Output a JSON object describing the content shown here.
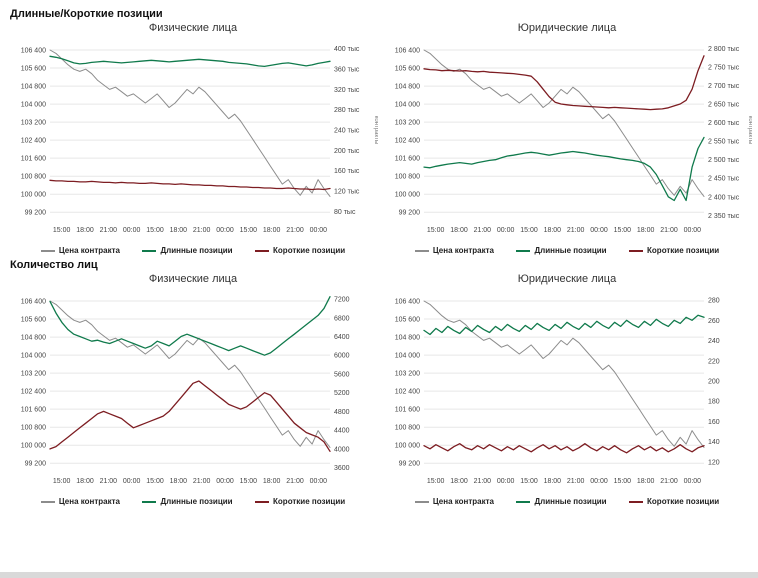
{
  "sections": [
    {
      "title": "Длинные/Короткие позиции"
    },
    {
      "title": "Количество лиц"
    }
  ],
  "legend": {
    "items": [
      "Цена контракта",
      "Длинные позиции",
      "Короткие позиции"
    ]
  },
  "colors": {
    "price": "#8c8c8c",
    "long": "#107a4c",
    "short": "#7d1d22",
    "grid": "#e7e7e7",
    "tick_text": "#444444"
  },
  "chart_data": [
    {
      "type": "line",
      "section": "Длинные/Короткие позиции",
      "title": "Физические лица",
      "x_ticks": [
        "15:00",
        "18:00",
        "21:00",
        "00:00",
        "15:00",
        "18:00",
        "21:00",
        "00:00",
        "15:00",
        "18:00",
        "21:00",
        "00:00"
      ],
      "left_axis": {
        "min": 98900,
        "max": 106800,
        "tick_values": [
          106400,
          105600,
          104800,
          104000,
          103200,
          102400,
          101600,
          100800,
          100000,
          99200
        ],
        "tick_labels": [
          "106 400",
          "105 600",
          "104 800",
          "104 000",
          "103 200",
          "102 400",
          "101 600",
          "100 800",
          "100 000",
          "99 200"
        ]
      },
      "right_axis": {
        "min": 65,
        "max": 415,
        "label": "контракты",
        "tick_values": [
          400,
          360,
          320,
          280,
          240,
          200,
          160,
          120,
          80
        ],
        "tick_labels": [
          "400 тыс",
          "360 тыс",
          "320 тыс",
          "280 тыс",
          "240 тыс",
          "200 тыс",
          "160 тыс",
          "120 тыс",
          "80 тыс"
        ]
      },
      "series": [
        {
          "name": "Цена контракта",
          "axis": "left",
          "color_key": "price",
          "values": [
            106400,
            106250,
            106000,
            105750,
            105550,
            105450,
            105550,
            105350,
            105050,
            104850,
            104650,
            104750,
            104550,
            104350,
            104450,
            104250,
            104050,
            104250,
            104450,
            104150,
            103850,
            104050,
            104350,
            104650,
            104450,
            104750,
            104550,
            104250,
            103950,
            103650,
            103350,
            103550,
            103250,
            102850,
            102450,
            102050,
            101650,
            101250,
            100850,
            100450,
            100650,
            100250,
            99950,
            100350,
            100050,
            100650,
            100250,
            99900
          ]
        },
        {
          "name": "Длинные позиции",
          "axis": "right",
          "color_key": "long",
          "values": [
            385,
            383,
            380,
            376,
            372,
            370,
            371,
            373,
            374,
            375,
            374,
            373,
            372,
            373,
            374,
            375,
            376,
            377,
            376,
            375,
            374,
            375,
            376,
            377,
            378,
            379,
            378,
            377,
            376,
            375,
            373,
            372,
            371,
            370,
            368,
            366,
            365,
            367,
            369,
            371,
            372,
            370,
            368,
            366,
            368,
            371,
            373,
            375
          ]
        },
        {
          "name": "Короткие позиции",
          "axis": "right",
          "color_key": "short",
          "values": [
            141,
            140,
            140,
            139,
            139,
            138,
            138,
            139,
            138,
            137,
            137,
            136,
            137,
            136,
            136,
            135,
            135,
            136,
            135,
            134,
            134,
            133,
            134,
            133,
            132,
            132,
            131,
            131,
            130,
            130,
            129,
            129,
            128,
            128,
            127,
            127,
            126,
            126,
            125,
            125,
            126,
            125,
            124,
            124,
            123,
            124,
            123,
            125
          ]
        }
      ]
    },
    {
      "type": "line",
      "section": "Длинные/Короткие позиции",
      "title": "Юридические лица",
      "x_ticks": [
        "15:00",
        "18:00",
        "21:00",
        "00:00",
        "15:00",
        "18:00",
        "21:00",
        "00:00",
        "15:00",
        "18:00",
        "21:00",
        "00:00"
      ],
      "left_axis": {
        "min": 98900,
        "max": 106800,
        "tick_values": [
          106400,
          105600,
          104800,
          104000,
          103200,
          102400,
          101600,
          100800,
          100000,
          99200
        ],
        "tick_labels": [
          "106 400",
          "105 600",
          "104 800",
          "104 000",
          "103 200",
          "102 400",
          "101 600",
          "100 800",
          "100 000",
          "99 200"
        ]
      },
      "right_axis": {
        "min": 2340,
        "max": 2820,
        "label": "контракты",
        "tick_values": [
          2800,
          2750,
          2700,
          2650,
          2600,
          2550,
          2500,
          2450,
          2400,
          2350
        ],
        "tick_labels": [
          "2 800 тыс",
          "2 750 тыс",
          "2 700 тыс",
          "2 650 тыс",
          "2 600 тыс",
          "2 550 тыс",
          "2 500 тыс",
          "2 450 тыс",
          "2 400 тыс",
          "2 350 тыс"
        ]
      },
      "series": [
        {
          "name": "Цена контракта",
          "axis": "left",
          "color_key": "price",
          "values": [
            106400,
            106250,
            106000,
            105750,
            105550,
            105450,
            105550,
            105350,
            105050,
            104850,
            104650,
            104750,
            104550,
            104350,
            104450,
            104250,
            104050,
            104250,
            104450,
            104150,
            103850,
            104050,
            104350,
            104650,
            104450,
            104750,
            104550,
            104250,
            103950,
            103650,
            103350,
            103550,
            103250,
            102850,
            102450,
            102050,
            101650,
            101250,
            100850,
            100450,
            100650,
            100250,
            99950,
            100350,
            100050,
            100650,
            100250,
            99900
          ]
        },
        {
          "name": "Длинные позиции",
          "axis": "right",
          "color_key": "long",
          "values": [
            2480,
            2478,
            2482,
            2485,
            2488,
            2490,
            2492,
            2490,
            2488,
            2492,
            2495,
            2498,
            2500,
            2505,
            2510,
            2512,
            2515,
            2518,
            2520,
            2518,
            2515,
            2512,
            2515,
            2518,
            2520,
            2522,
            2520,
            2518,
            2515,
            2512,
            2510,
            2508,
            2505,
            2502,
            2500,
            2498,
            2495,
            2490,
            2480,
            2460,
            2430,
            2400,
            2390,
            2420,
            2390,
            2480,
            2530,
            2560
          ]
        },
        {
          "name": "Короткие позиции",
          "axis": "right",
          "color_key": "short",
          "values": [
            2745,
            2743,
            2742,
            2740,
            2741,
            2740,
            2739,
            2740,
            2738,
            2737,
            2738,
            2736,
            2735,
            2734,
            2733,
            2732,
            2730,
            2728,
            2725,
            2710,
            2690,
            2670,
            2655,
            2650,
            2648,
            2646,
            2645,
            2644,
            2643,
            2642,
            2641,
            2640,
            2641,
            2640,
            2639,
            2638,
            2637,
            2636,
            2635,
            2636,
            2637,
            2640,
            2645,
            2650,
            2660,
            2690,
            2740,
            2780
          ]
        }
      ]
    },
    {
      "type": "line",
      "section": "Количество лиц",
      "title": "Физические лица",
      "x_ticks": [
        "15:00",
        "18:00",
        "21:00",
        "00:00",
        "15:00",
        "18:00",
        "21:00",
        "00:00",
        "15:00",
        "18:00",
        "21:00",
        "00:00"
      ],
      "left_axis": {
        "min": 98900,
        "max": 106800,
        "tick_values": [
          106400,
          105600,
          104800,
          104000,
          103200,
          102400,
          101600,
          100800,
          100000,
          99200
        ],
        "tick_labels": [
          "106 400",
          "105 600",
          "104 800",
          "104 000",
          "103 200",
          "102 400",
          "101 600",
          "100 800",
          "100 000",
          "99 200"
        ]
      },
      "right_axis": {
        "min": 3550,
        "max": 7350,
        "label": "",
        "tick_values": [
          7200,
          6800,
          6400,
          6000,
          5600,
          5200,
          4800,
          4400,
          4000,
          3600
        ],
        "tick_labels": [
          "7200",
          "6800",
          "6400",
          "6000",
          "5600",
          "5200",
          "4800",
          "4400",
          "4000",
          "3600"
        ]
      },
      "series": [
        {
          "name": "Цена контракта",
          "axis": "left",
          "color_key": "price",
          "values": [
            106400,
            106250,
            106000,
            105750,
            105550,
            105450,
            105550,
            105350,
            105050,
            104850,
            104650,
            104750,
            104550,
            104350,
            104450,
            104250,
            104050,
            104250,
            104450,
            104150,
            103850,
            104050,
            104350,
            104650,
            104450,
            104750,
            104550,
            104250,
            103950,
            103650,
            103350,
            103550,
            103250,
            102850,
            102450,
            102050,
            101650,
            101250,
            100850,
            100450,
            100650,
            100250,
            99950,
            100350,
            100050,
            100650,
            100250,
            99900
          ]
        },
        {
          "name": "Длинные позиции",
          "axis": "right",
          "color_key": "long",
          "values": [
            7150,
            6900,
            6700,
            6550,
            6450,
            6400,
            6350,
            6300,
            6320,
            6280,
            6250,
            6300,
            6350,
            6300,
            6250,
            6200,
            6150,
            6200,
            6300,
            6250,
            6200,
            6300,
            6400,
            6450,
            6400,
            6350,
            6300,
            6250,
            6200,
            6150,
            6100,
            6150,
            6200,
            6150,
            6100,
            6050,
            6000,
            6050,
            6150,
            6250,
            6350,
            6450,
            6550,
            6650,
            6750,
            6850,
            7000,
            7250
          ]
        },
        {
          "name": "Короткие позиции",
          "axis": "right",
          "color_key": "short",
          "values": [
            4000,
            4050,
            4150,
            4250,
            4350,
            4450,
            4550,
            4650,
            4750,
            4800,
            4750,
            4700,
            4650,
            4550,
            4450,
            4500,
            4550,
            4600,
            4650,
            4700,
            4800,
            4950,
            5100,
            5250,
            5400,
            5450,
            5350,
            5250,
            5150,
            5050,
            4950,
            4900,
            4850,
            4900,
            5000,
            5100,
            5200,
            5150,
            5000,
            4850,
            4700,
            4550,
            4450,
            4350,
            4300,
            4250,
            4150,
            3950
          ]
        }
      ]
    },
    {
      "type": "line",
      "section": "Количество лиц",
      "title": "Юридические лица",
      "x_ticks": [
        "15:00",
        "18:00",
        "21:00",
        "00:00",
        "15:00",
        "18:00",
        "21:00",
        "00:00",
        "15:00",
        "18:00",
        "21:00",
        "00:00"
      ],
      "left_axis": {
        "min": 98900,
        "max": 106800,
        "tick_values": [
          106400,
          105600,
          104800,
          104000,
          103200,
          102400,
          101600,
          100800,
          100000,
          99200
        ],
        "tick_labels": [
          "106 400",
          "105 600",
          "104 800",
          "104 000",
          "103 200",
          "102 400",
          "101 600",
          "100 800",
          "100 000",
          "99 200"
        ]
      },
      "right_axis": {
        "min": 112,
        "max": 288,
        "label": "",
        "tick_values": [
          280,
          260,
          240,
          220,
          200,
          180,
          160,
          140,
          120
        ],
        "tick_labels": [
          "280",
          "260",
          "240",
          "220",
          "200",
          "180",
          "160",
          "140",
          "120"
        ]
      },
      "series": [
        {
          "name": "Цена контракта",
          "axis": "left",
          "color_key": "price",
          "values": [
            106400,
            106250,
            106000,
            105750,
            105550,
            105450,
            105550,
            105350,
            105050,
            104850,
            104650,
            104750,
            104550,
            104350,
            104450,
            104250,
            104050,
            104250,
            104450,
            104150,
            103850,
            104050,
            104350,
            104650,
            104450,
            104750,
            104550,
            104250,
            103950,
            103650,
            103350,
            103550,
            103250,
            102850,
            102450,
            102050,
            101650,
            101250,
            100850,
            100450,
            100650,
            100250,
            99950,
            100350,
            100050,
            100650,
            100250,
            99900
          ]
        },
        {
          "name": "Длинные позиции",
          "axis": "right",
          "color_key": "long",
          "values": [
            250,
            246,
            252,
            248,
            254,
            250,
            247,
            253,
            249,
            255,
            251,
            248,
            254,
            250,
            256,
            252,
            249,
            255,
            251,
            257,
            253,
            250,
            256,
            252,
            258,
            254,
            251,
            257,
            253,
            259,
            255,
            252,
            258,
            254,
            260,
            256,
            253,
            259,
            255,
            261,
            257,
            254,
            260,
            257,
            263,
            260,
            265,
            263
          ]
        },
        {
          "name": "Короткие позиции",
          "axis": "right",
          "color_key": "short",
          "values": [
            136,
            133,
            137,
            134,
            131,
            135,
            138,
            134,
            132,
            136,
            133,
            137,
            134,
            131,
            135,
            132,
            136,
            133,
            130,
            134,
            137,
            133,
            136,
            132,
            135,
            131,
            134,
            138,
            134,
            131,
            135,
            132,
            136,
            132,
            129,
            133,
            136,
            132,
            135,
            131,
            134,
            130,
            133,
            137,
            133,
            130,
            134,
            136
          ]
        }
      ]
    }
  ]
}
